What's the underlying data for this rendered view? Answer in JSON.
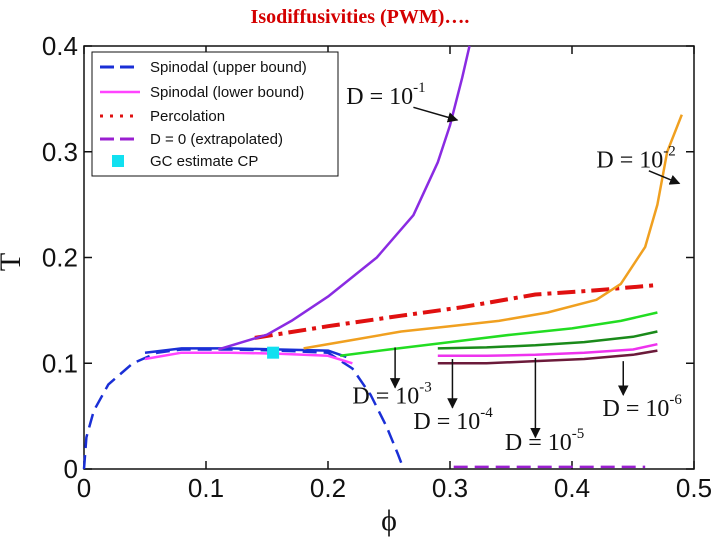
{
  "slide_title": "Isodiffusivities  (PWM)….",
  "chart_data": {
    "type": "line",
    "title": "",
    "xlabel": "ϕ",
    "ylabel": "T",
    "xlim": [
      0,
      0.5
    ],
    "ylim": [
      0,
      0.4
    ],
    "x_ticks": [
      {
        "value": 0,
        "label": "0"
      },
      {
        "value": 0.1,
        "label": "0.1"
      },
      {
        "value": 0.2,
        "label": "0.2"
      },
      {
        "value": 0.3,
        "label": "0.3"
      },
      {
        "value": 0.4,
        "label": "0.4"
      },
      {
        "value": 0.5,
        "label": "0.5"
      }
    ],
    "y_ticks": [
      {
        "value": 0,
        "label": "0"
      },
      {
        "value": 0.1,
        "label": "0.1"
      },
      {
        "value": 0.2,
        "label": "0.2"
      },
      {
        "value": 0.3,
        "label": "0.3"
      },
      {
        "value": 0.4,
        "label": "0.4"
      }
    ],
    "legend": {
      "placement": "top-left",
      "entries": [
        {
          "label": "Spinodal (upper bound)",
          "color": "#1a2fd6",
          "style": "dashed"
        },
        {
          "label": "Spinodal (lower bound)",
          "color": "#ff44ff",
          "style": "solid"
        },
        {
          "label": "Percolation",
          "color": "#e01010",
          "style": "dotted"
        },
        {
          "label": "D = 0 (extrapolated)",
          "color": "#9a1fd0",
          "style": "dashed"
        },
        {
          "label": "GC estimate CP",
          "color": "#11e0f0",
          "style": "marker"
        }
      ]
    },
    "series": [
      {
        "name": "Spinodal (upper bound)",
        "color": "#1a2fd6",
        "dash": "dash",
        "points": [
          [
            0.0,
            0.0
          ],
          [
            0.002,
            0.03
          ],
          [
            0.008,
            0.055
          ],
          [
            0.02,
            0.08
          ],
          [
            0.04,
            0.1
          ],
          [
            0.06,
            0.11
          ],
          [
            0.08,
            0.113
          ],
          [
            0.12,
            0.113
          ],
          [
            0.16,
            0.112
          ],
          [
            0.2,
            0.11
          ],
          [
            0.22,
            0.095
          ],
          [
            0.235,
            0.07
          ],
          [
            0.248,
            0.04
          ],
          [
            0.257,
            0.015
          ],
          [
            0.262,
            0.0
          ]
        ]
      },
      {
        "name": "Spinodal (upper bound) solid",
        "color": "#1a2fd6",
        "dash": "solid",
        "points": [
          [
            0.05,
            0.11
          ],
          [
            0.08,
            0.114
          ],
          [
            0.12,
            0.114
          ],
          [
            0.16,
            0.113
          ],
          [
            0.2,
            0.112
          ],
          [
            0.215,
            0.106
          ]
        ]
      },
      {
        "name": "Spinodal (lower bound)",
        "color": "#ff44ff",
        "dash": "solid",
        "points": [
          [
            0.05,
            0.104
          ],
          [
            0.08,
            0.11
          ],
          [
            0.12,
            0.11
          ],
          [
            0.16,
            0.109
          ],
          [
            0.2,
            0.107
          ],
          [
            0.22,
            0.1
          ]
        ]
      },
      {
        "name": "Percolation",
        "color": "#e01010",
        "dash": "dashdot",
        "points": [
          [
            0.14,
            0.124
          ],
          [
            0.2,
            0.135
          ],
          [
            0.26,
            0.145
          ],
          [
            0.31,
            0.153
          ],
          [
            0.37,
            0.165
          ],
          [
            0.42,
            0.169
          ],
          [
            0.47,
            0.174
          ]
        ]
      },
      {
        "name": "D = 10^-1",
        "color": "#8a2be2",
        "dash": "solid",
        "points": [
          [
            0.11,
            0.113
          ],
          [
            0.13,
            0.12
          ],
          [
            0.15,
            0.127
          ],
          [
            0.17,
            0.14
          ],
          [
            0.2,
            0.163
          ],
          [
            0.24,
            0.2
          ],
          [
            0.27,
            0.24
          ],
          [
            0.29,
            0.29
          ],
          [
            0.3,
            0.325
          ],
          [
            0.31,
            0.37
          ],
          [
            0.316,
            0.4
          ]
        ]
      },
      {
        "name": "D = 10^-2",
        "color": "#f0a020",
        "dash": "solid",
        "points": [
          [
            0.18,
            0.114
          ],
          [
            0.22,
            0.122
          ],
          [
            0.26,
            0.13
          ],
          [
            0.3,
            0.135
          ],
          [
            0.34,
            0.14
          ],
          [
            0.38,
            0.148
          ],
          [
            0.42,
            0.16
          ],
          [
            0.44,
            0.175
          ],
          [
            0.46,
            0.21
          ],
          [
            0.47,
            0.25
          ],
          [
            0.478,
            0.3
          ],
          [
            0.49,
            0.335
          ]
        ]
      },
      {
        "name": "D = 10^-3",
        "color": "#22dd22",
        "dash": "solid",
        "points": [
          [
            0.21,
            0.107
          ],
          [
            0.25,
            0.113
          ],
          [
            0.3,
            0.12
          ],
          [
            0.35,
            0.127
          ],
          [
            0.4,
            0.133
          ],
          [
            0.44,
            0.14
          ],
          [
            0.47,
            0.148
          ]
        ]
      },
      {
        "name": "D = 10^-4",
        "color": "#1a8a1a",
        "dash": "solid",
        "points": [
          [
            0.29,
            0.114
          ],
          [
            0.33,
            0.115
          ],
          [
            0.37,
            0.117
          ],
          [
            0.41,
            0.12
          ],
          [
            0.45,
            0.125
          ],
          [
            0.47,
            0.13
          ]
        ]
      },
      {
        "name": "D = 10^-5",
        "color": "#ee33ee",
        "dash": "solid",
        "points": [
          [
            0.29,
            0.107
          ],
          [
            0.33,
            0.107
          ],
          [
            0.37,
            0.108
          ],
          [
            0.41,
            0.11
          ],
          [
            0.45,
            0.113
          ],
          [
            0.47,
            0.118
          ]
        ]
      },
      {
        "name": "D = 10^-6",
        "color": "#6b1a3a",
        "dash": "solid",
        "points": [
          [
            0.29,
            0.1
          ],
          [
            0.33,
            0.1
          ],
          [
            0.37,
            0.102
          ],
          [
            0.41,
            0.104
          ],
          [
            0.45,
            0.108
          ],
          [
            0.47,
            0.112
          ]
        ]
      },
      {
        "name": "D = 0 (extrapolated)",
        "color": "#9a1fd0",
        "dash": "dash",
        "points": [
          [
            0.303,
            0.002
          ],
          [
            0.46,
            0.002
          ]
        ]
      }
    ],
    "markers": [
      {
        "name": "GC estimate CP",
        "x": 0.155,
        "y": 0.11,
        "color": "#11e0f0",
        "shape": "square"
      }
    ],
    "annotations": [
      {
        "id": "d1",
        "base": "D = 10",
        "exp": "-1",
        "text_at": [
          0.215,
          0.345
        ],
        "arrow_from": [
          0.27,
          0.342
        ],
        "arrow_to": [
          0.306,
          0.33
        ]
      },
      {
        "id": "d2",
        "base": "D = 10",
        "exp": "-2",
        "text_at": [
          0.42,
          0.285
        ],
        "arrow_from": [
          0.463,
          0.282
        ],
        "arrow_to": [
          0.488,
          0.27
        ]
      },
      {
        "id": "d3",
        "base": "D = 10",
        "exp": "-3",
        "text_at": [
          0.22,
          0.062
        ],
        "arrow_from": [
          0.255,
          0.115
        ],
        "arrow_to": [
          0.255,
          0.077
        ]
      },
      {
        "id": "d4",
        "base": "D = 10",
        "exp": "-4",
        "text_at": [
          0.27,
          0.038
        ],
        "arrow_from": [
          0.302,
          0.104
        ],
        "arrow_to": [
          0.302,
          0.058
        ]
      },
      {
        "id": "d5",
        "base": "D = 10",
        "exp": "-5",
        "text_at": [
          0.345,
          0.018
        ],
        "arrow_from": [
          0.37,
          0.105
        ],
        "arrow_to": [
          0.37,
          0.03
        ]
      },
      {
        "id": "d6",
        "base": "D = 10",
        "exp": "-6",
        "text_at": [
          0.425,
          0.05
        ],
        "arrow_from": [
          0.442,
          0.102
        ],
        "arrow_to": [
          0.442,
          0.07
        ]
      }
    ]
  }
}
